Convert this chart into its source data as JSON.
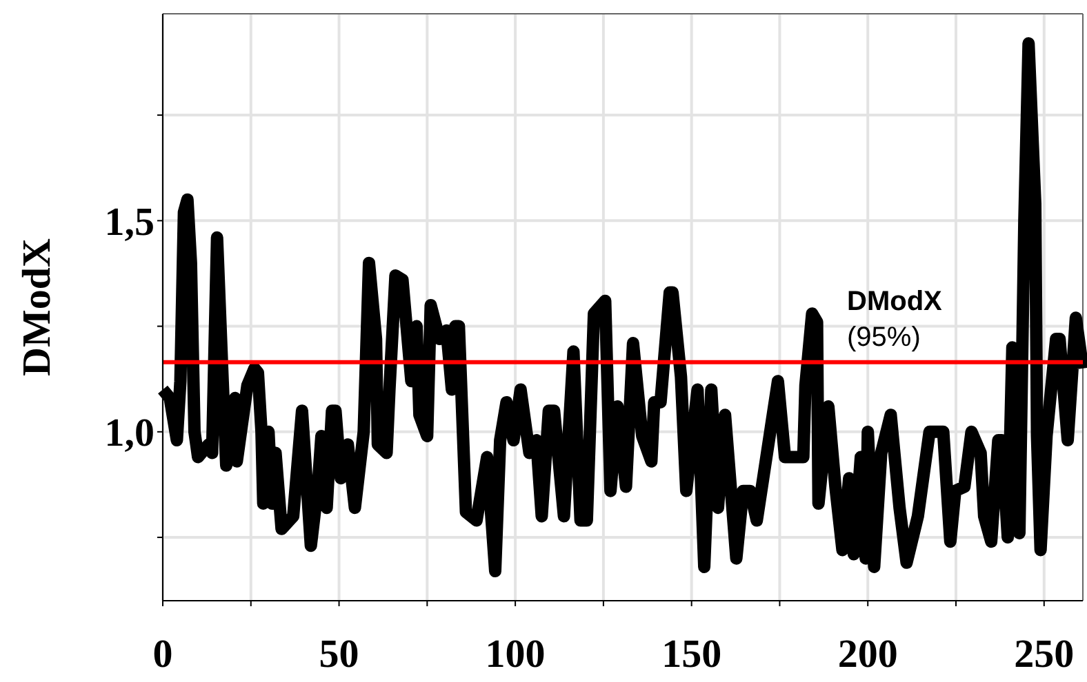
{
  "chart_data": {
    "type": "line",
    "ylabel": "DModX",
    "x": [
      0,
      2,
      4,
      5,
      6,
      7,
      8,
      9,
      10,
      12,
      13,
      14,
      15.4,
      17,
      18,
      20.5,
      21,
      24,
      26,
      27,
      28,
      28.5,
      30,
      31,
      32,
      33.7,
      37,
      39.5,
      42,
      44,
      45,
      46.5,
      48,
      49,
      50.5,
      52.5,
      54.5,
      57,
      58.5,
      60.5,
      61,
      63.5,
      64.3,
      66,
      68,
      70.5,
      72,
      72.8,
      75,
      76,
      78.5,
      80.5,
      82,
      83,
      84,
      86,
      89,
      92,
      94.3,
      95.7,
      97.5,
      99.5,
      101.5,
      104,
      106,
      107.5,
      109.5,
      111,
      113.8,
      116.5,
      118.5,
      120.3,
      122.3,
      125.5,
      127,
      129,
      131.4,
      133.4,
      136,
      138.6,
      139.4,
      141.2,
      143.8,
      144.6,
      147,
      148.5,
      149.7,
      151.7,
      153.6,
      155.6,
      157.5,
      159.5,
      162.7,
      164.6,
      166.6,
      168.5,
      170.5,
      172.5,
      174.5,
      176.5,
      181.7,
      182.3,
      184.2,
      185.6,
      186,
      188.8,
      190.8,
      192.8,
      194.7,
      196,
      198,
      199.4,
      200,
      201.8,
      203.8,
      206.5,
      209,
      211,
      214.2,
      217.5,
      221.4,
      223.4,
      224.8,
      227.4,
      229.4,
      232,
      233,
      235,
      237,
      238,
      239.7,
      241,
      243,
      244.4,
      245.6,
      247.5,
      248,
      249,
      250.7,
      253.4,
      254.4,
      256.7,
      259,
      261
    ],
    "series": [
      {
        "color": "#000000",
        "values": [
          1.1,
          1.08,
          0.98,
          1.12,
          1.52,
          1.55,
          1.4,
          1.0,
          0.94,
          0.96,
          0.97,
          0.95,
          1.46,
          1.12,
          0.92,
          1.08,
          0.93,
          1.11,
          1.15,
          1.14,
          1.0,
          0.83,
          1.0,
          0.83,
          0.95,
          0.77,
          0.8,
          1.05,
          0.73,
          0.87,
          0.99,
          0.82,
          1.05,
          1.05,
          0.89,
          0.97,
          0.82,
          1.0,
          1.4,
          1.22,
          0.97,
          0.95,
          1.1,
          1.37,
          1.36,
          1.12,
          1.25,
          1.04,
          0.99,
          1.3,
          1.22,
          1.24,
          1.1,
          1.25,
          1.25,
          0.81,
          0.79,
          0.94,
          0.67,
          0.98,
          1.07,
          0.98,
          1.1,
          0.95,
          0.98,
          0.8,
          1.05,
          1.05,
          0.8,
          1.19,
          0.79,
          0.79,
          1.28,
          1.31,
          0.86,
          1.06,
          0.87,
          1.21,
          0.99,
          0.93,
          1.07,
          1.07,
          1.33,
          1.33,
          1.13,
          0.86,
          0.95,
          1.1,
          0.68,
          1.1,
          0.82,
          1.04,
          0.7,
          0.86,
          0.86,
          0.79,
          0.9,
          1.01,
          1.12,
          0.94,
          0.94,
          1.11,
          1.28,
          1.26,
          0.83,
          1.06,
          0.87,
          0.72,
          0.89,
          0.71,
          0.94,
          0.7,
          1.0,
          0.68,
          0.95,
          1.04,
          0.82,
          0.69,
          0.8,
          1.0,
          1.0,
          0.74,
          0.86,
          0.87,
          1.0,
          0.95,
          0.8,
          0.74,
          0.98,
          0.98,
          0.75,
          1.2,
          0.76,
          1.5,
          1.92,
          1.54,
          0.99,
          0.72,
          0.99,
          1.22,
          1.22,
          0.98,
          1.27,
          1.15
        ]
      }
    ],
    "xlim": [
      0,
      261
    ],
    "xticks": [
      0,
      {
        "value": 25,
        "label": null
      },
      50,
      {
        "value": 75,
        "label": null
      },
      100,
      {
        "value": 125,
        "label": null
      },
      150,
      {
        "value": 175,
        "label": null
      },
      200,
      {
        "value": 225,
        "label": null
      },
      250
    ],
    "ylim": [
      0.6,
      1.99
    ],
    "yticks": [
      {
        "value": 0.75,
        "label": null
      },
      {
        "value": 1.0,
        "label": "1,0"
      },
      {
        "value": 1.25,
        "label": null
      },
      {
        "value": 1.5,
        "label": "1,5"
      },
      {
        "value": 1.75,
        "label": null
      }
    ],
    "grid": true,
    "line_style": "solid",
    "marker": "none",
    "ref_lines": [
      {
        "axis": "y",
        "value": 1.165,
        "label": "DModX\n(95%)",
        "color": "#ff0000",
        "line_style": "solid"
      }
    ]
  }
}
